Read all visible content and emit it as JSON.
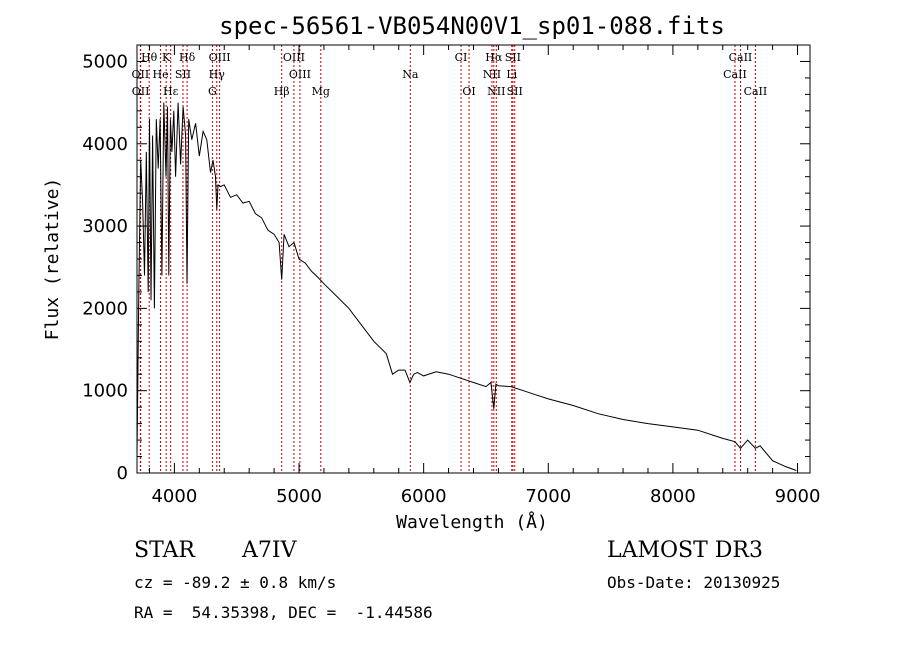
{
  "chart_data": {
    "type": "line",
    "title": "spec-56561-VB054N00V1_sp01-088.fits",
    "xlabel": "Wavelength (Å)",
    "ylabel": "Flux (relative)",
    "xlim": [
      3700,
      9100
    ],
    "ylim": [
      0,
      5200
    ],
    "xticks": [
      4000,
      5000,
      6000,
      7000,
      8000,
      9000
    ],
    "yticks": [
      0,
      1000,
      2000,
      3000,
      4000,
      5000
    ],
    "grid": false,
    "series": [
      {
        "name": "flux",
        "x": [
          3700,
          3715,
          3730,
          3745,
          3760,
          3775,
          3790,
          3800,
          3812,
          3825,
          3840,
          3855,
          3870,
          3885,
          3900,
          3915,
          3933,
          3945,
          3955,
          3968,
          3980,
          3995,
          4010,
          4030,
          4050,
          4070,
          4090,
          4101,
          4115,
          4140,
          4170,
          4200,
          4230,
          4260,
          4290,
          4310,
          4330,
          4340,
          4350,
          4370,
          4400,
          4450,
          4500,
          4550,
          4600,
          4650,
          4700,
          4750,
          4800,
          4840,
          4861,
          4880,
          4920,
          4960,
          5000,
          5050,
          5100,
          5150,
          5200,
          5300,
          5400,
          5500,
          5600,
          5700,
          5750,
          5800,
          5850,
          5890,
          5920,
          5950,
          6000,
          6100,
          6200,
          6300,
          6400,
          6500,
          6540,
          6563,
          6580,
          6600,
          6700,
          6800,
          6900,
          7000,
          7200,
          7400,
          7600,
          7800,
          8000,
          8200,
          8400,
          8498,
          8542,
          8600,
          8662,
          8700,
          8800,
          8900,
          8990
        ],
        "y": [
          200,
          2300,
          3800,
          3300,
          2400,
          3900,
          2200,
          4300,
          2100,
          4100,
          2000,
          4300,
          3700,
          4300,
          2400,
          4500,
          3600,
          4450,
          2400,
          4300,
          3900,
          4400,
          3600,
          4500,
          3750,
          4450,
          4100,
          2300,
          4300,
          4050,
          4250,
          3850,
          4150,
          4050,
          3650,
          3800,
          3600,
          3200,
          3500,
          3480,
          3500,
          3350,
          3380,
          3280,
          3300,
          3150,
          3100,
          2950,
          2900,
          2800,
          2350,
          2900,
          2750,
          2800,
          2600,
          2550,
          2450,
          2380,
          2300,
          2150,
          2000,
          1800,
          1600,
          1450,
          1200,
          1250,
          1250,
          1100,
          1200,
          1220,
          1180,
          1230,
          1200,
          1150,
          1100,
          1050,
          1100,
          780,
          1080,
          1060,
          1050,
          1000,
          950,
          900,
          820,
          720,
          650,
          600,
          560,
          520,
          420,
          380,
          300,
          400,
          300,
          330,
          150,
          80,
          30
        ]
      }
    ],
    "annotations": [
      {
        "label": "Hθ",
        "x": 3798
      },
      {
        "label": "K",
        "x": 3934
      },
      {
        "label": "Hδ",
        "x": 4102
      },
      {
        "label": "OIII",
        "x": 4363
      },
      {
        "label": "OIII",
        "x": 4959
      },
      {
        "label": "CI",
        "x": 6300
      },
      {
        "label": "Hα",
        "x": 6563
      },
      {
        "label": "SII",
        "x": 6716
      },
      {
        "label": "CaII",
        "x": 8542
      },
      {
        "label": "OII",
        "x": 3727
      },
      {
        "label": "He",
        "x": 3889
      },
      {
        "label": "SII",
        "x": 4069
      },
      {
        "label": "Hγ",
        "x": 4340
      },
      {
        "label": "OIII",
        "x": 5007
      },
      {
        "label": "Na",
        "x": 5893
      },
      {
        "label": "NII",
        "x": 6548
      },
      {
        "label": "Li",
        "x": 6707
      },
      {
        "label": "CaII",
        "x": 8498
      },
      {
        "label": "OII",
        "x": 3729
      },
      {
        "label": "Hε",
        "x": 3970
      },
      {
        "label": "G",
        "x": 4305
      },
      {
        "label": "Hβ",
        "x": 4861
      },
      {
        "label": "Mg",
        "x": 5175
      },
      {
        "label": "OI",
        "x": 6364
      },
      {
        "label": "NII",
        "x": 6583
      },
      {
        "label": "SII",
        "x": 6731
      },
      {
        "label": "CaII",
        "x": 8662
      }
    ]
  },
  "info": {
    "object_type": "STAR",
    "subclass": "A7IV",
    "cz": "cz = -89.2 ± 0.8 km/s",
    "coords": "RA =  54.35398, DEC =  -1.44586",
    "survey": "LAMOST DR3",
    "obs_date": "Obs-Date: 20130925"
  }
}
